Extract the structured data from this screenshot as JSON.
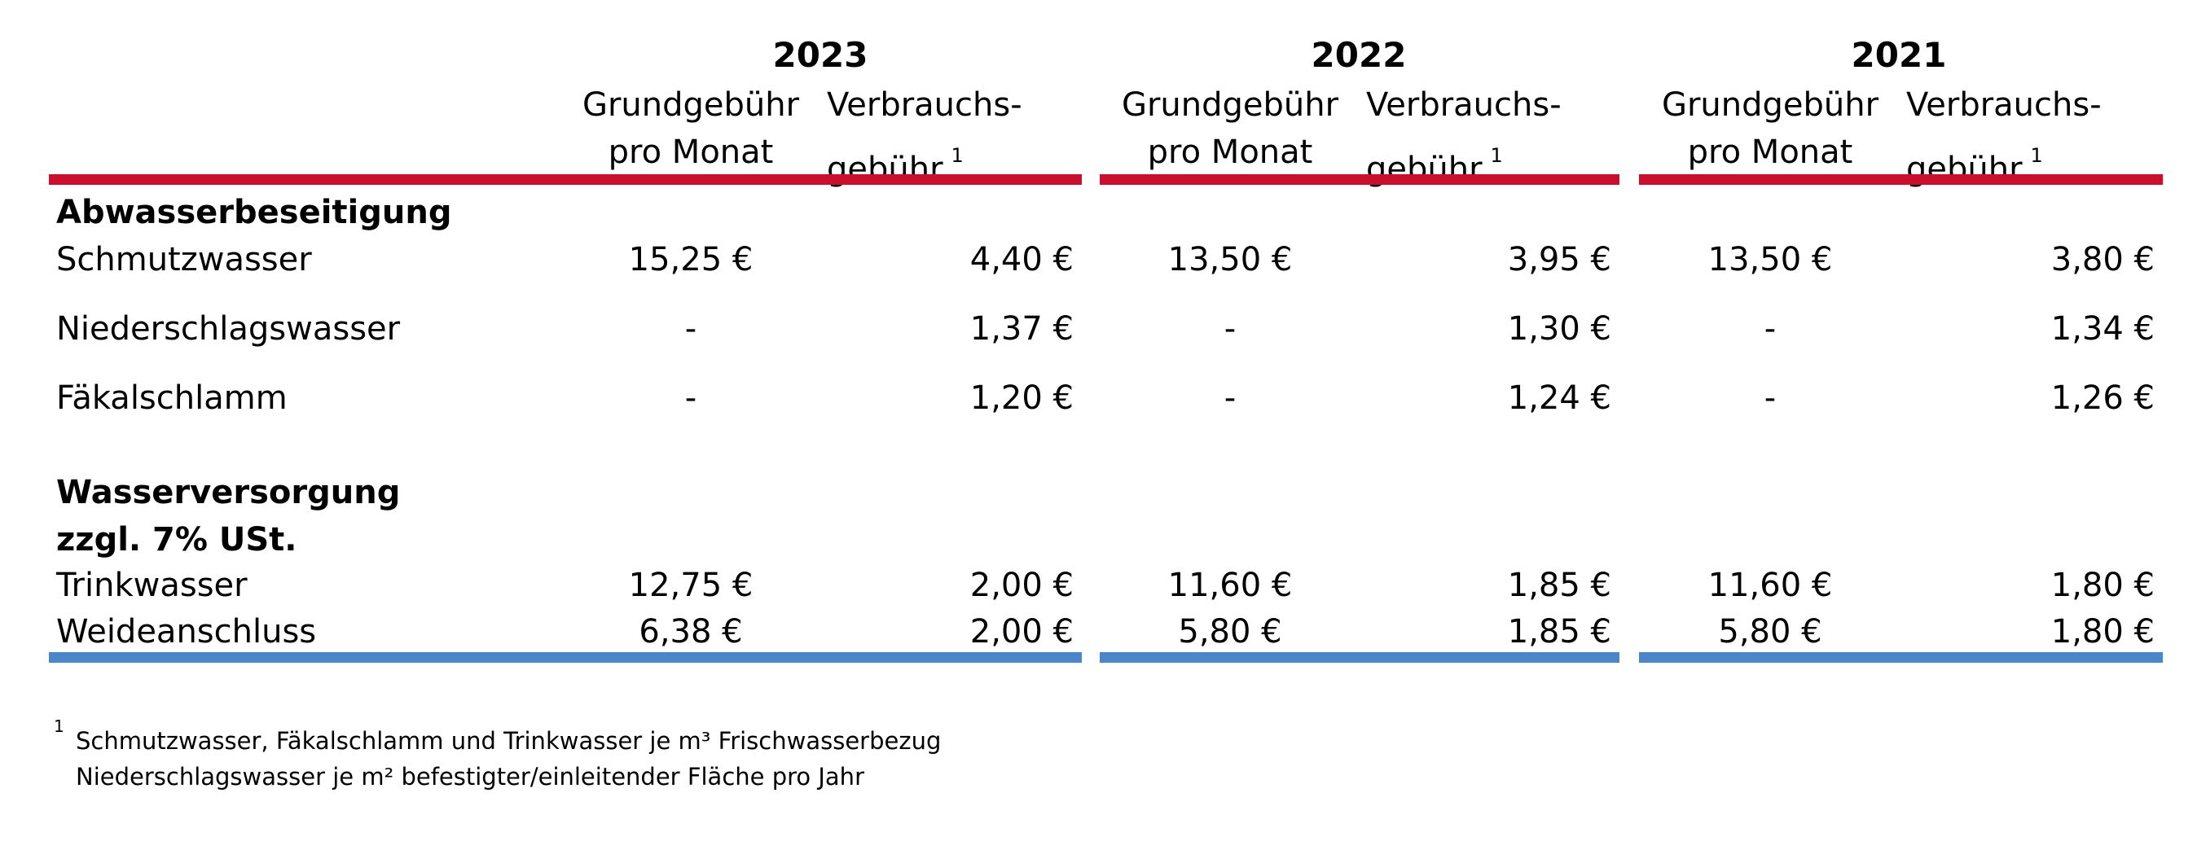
{
  "years": [
    "2023",
    "2022",
    "2021"
  ],
  "headers": {
    "grund_line1": "Grundgebühr",
    "grund_line2": "pro Monat",
    "verb_line1": "Verbrauchs-",
    "verb_line2": "gebühr",
    "footnote_mark": "1"
  },
  "sections": {
    "abwasser": "Abwasserbeseitigung",
    "wasser_line1": "Wasserversorgung",
    "wasser_line2": "zzgl. 7% USt."
  },
  "rows": [
    {
      "label": "Schmutzwasser",
      "values": [
        [
          "15,25 €",
          "4,40 €"
        ],
        [
          "13,50 €",
          "3,95 €"
        ],
        [
          "13,50 €",
          "3,80 €"
        ]
      ]
    },
    {
      "label": "Niederschlagswasser",
      "values": [
        [
          "-",
          "1,37 €"
        ],
        [
          "-",
          "1,30 €"
        ],
        [
          "-",
          "1,34 €"
        ]
      ]
    },
    {
      "label": "Fäkalschlamm",
      "values": [
        [
          "-",
          "1,20 €"
        ],
        [
          "-",
          "1,24 €"
        ],
        [
          "-",
          "1,26 €"
        ]
      ]
    },
    {
      "label": "Trinkwasser",
      "values": [
        [
          "12,75 €",
          "2,00 €"
        ],
        [
          "11,60 €",
          "1,85 €"
        ],
        [
          "11,60 €",
          "1,80 €"
        ]
      ]
    },
    {
      "label": "Weideanschluss",
      "values": [
        [
          "6,38 €",
          "2,00 €"
        ],
        [
          "5,80 €",
          "1,85 €"
        ],
        [
          "5,80 €",
          "1,80 €"
        ]
      ]
    }
  ],
  "footnote": {
    "mark": "1",
    "line1": "Schmutzwasser, Fäkalschlamm und Trinkwasser je m³ Frischwasserbezug",
    "line2": "Niederschlagswasser je m² befestigter/einleitender Fläche pro Jahr"
  },
  "colors": {
    "top_rule": "#c8102e",
    "bottom_rule": "#4a86c8"
  }
}
